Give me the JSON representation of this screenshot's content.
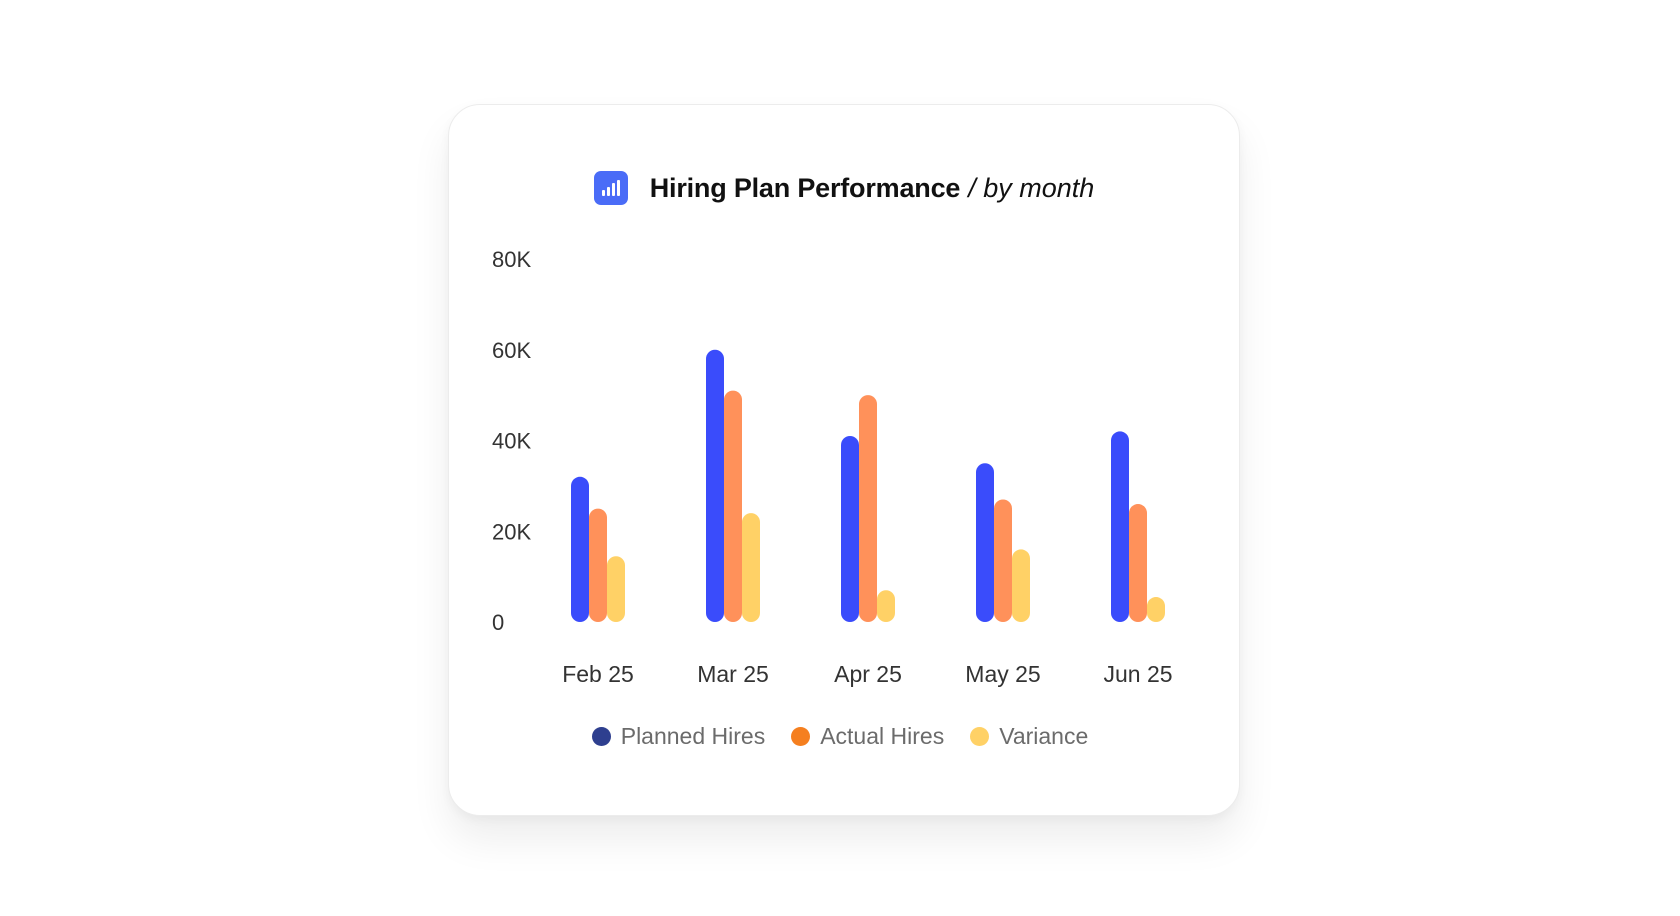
{
  "header": {
    "title": "Hiring Plan Performance",
    "subtitle": "/ by month",
    "icon": "bar-chart-icon"
  },
  "chart_data": {
    "type": "bar",
    "categories": [
      "Feb 25",
      "Mar 25",
      "Apr 25",
      "May 25",
      "Jun 25"
    ],
    "series": [
      {
        "name": "Planned Hires",
        "values": [
          32000,
          60000,
          41000,
          35000,
          42000
        ],
        "color": "#3a4cfb",
        "legend_color": "#2e3f8f"
      },
      {
        "name": "Actual Hires",
        "values": [
          25000,
          51000,
          50000,
          27000,
          26000
        ],
        "color": "#ff915a",
        "legend_color": "#f57f1f"
      },
      {
        "name": "Variance",
        "values": [
          14500,
          24000,
          7000,
          16000,
          5500
        ],
        "color": "#ffd166",
        "legend_color": "#ffd166"
      }
    ],
    "y_ticks": [
      "0",
      "20K",
      "40K",
      "60K",
      "80K"
    ],
    "ylim": [
      0,
      80000
    ],
    "grid": false,
    "legend_position": "bottom-center",
    "title": "Hiring Plan Performance",
    "xlabel": "",
    "ylabel": ""
  }
}
